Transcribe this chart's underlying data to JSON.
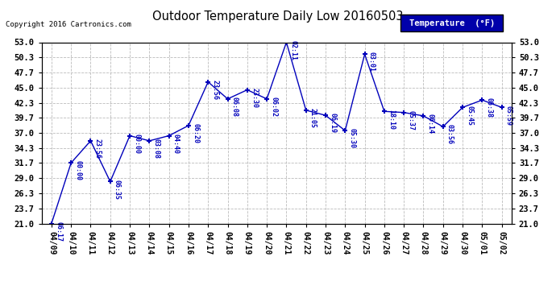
{
  "title": "Outdoor Temperature Daily Low 20160503",
  "copyright": "Copyright 2016 Cartronics.com",
  "legend_label": "Temperature  (°F)",
  "x_labels": [
    "04/09",
    "04/10",
    "04/11",
    "04/12",
    "04/13",
    "04/14",
    "04/15",
    "04/16",
    "04/17",
    "04/18",
    "04/19",
    "04/20",
    "04/21",
    "04/22",
    "04/23",
    "04/24",
    "04/25",
    "04/26",
    "04/27",
    "04/28",
    "04/29",
    "04/30",
    "05/01",
    "05/02"
  ],
  "data_points": [
    {
      "date": "04/09",
      "time": "06:17",
      "temp": 21.0
    },
    {
      "date": "04/10",
      "time": "00:00",
      "temp": 31.7
    },
    {
      "date": "04/11",
      "time": "23:56",
      "temp": 35.6
    },
    {
      "date": "04/12",
      "time": "06:35",
      "temp": 28.4
    },
    {
      "date": "04/13",
      "time": "00:00",
      "temp": 36.5
    },
    {
      "date": "04/14",
      "time": "03:08",
      "temp": 35.6
    },
    {
      "date": "04/15",
      "time": "04:40",
      "temp": 36.5
    },
    {
      "date": "04/16",
      "time": "06:20",
      "temp": 38.3
    },
    {
      "date": "04/17",
      "time": "23:56",
      "temp": 46.0
    },
    {
      "date": "04/18",
      "time": "06:08",
      "temp": 43.0
    },
    {
      "date": "04/19",
      "time": "23:30",
      "temp": 44.6
    },
    {
      "date": "04/20",
      "time": "06:02",
      "temp": 43.0
    },
    {
      "date": "04/21",
      "time": "02:11",
      "temp": 53.0
    },
    {
      "date": "04/22",
      "time": "21:05",
      "temp": 41.0
    },
    {
      "date": "04/23",
      "time": "06:19",
      "temp": 40.1
    },
    {
      "date": "04/24",
      "time": "05:30",
      "temp": 37.4
    },
    {
      "date": "04/25",
      "time": "03:01",
      "temp": 50.9
    },
    {
      "date": "04/26",
      "time": "18:10",
      "temp": 40.8
    },
    {
      "date": "04/27",
      "time": "05:37",
      "temp": 40.6
    },
    {
      "date": "04/28",
      "time": "06:14",
      "temp": 40.0
    },
    {
      "date": "04/29",
      "time": "03:56",
      "temp": 38.1
    },
    {
      "date": "04/30",
      "time": "05:45",
      "temp": 41.5
    },
    {
      "date": "05/01",
      "time": "06:38",
      "temp": 42.8
    },
    {
      "date": "05/02",
      "time": "05:59",
      "temp": 41.5
    }
  ],
  "ylim": [
    21.0,
    53.0
  ],
  "yticks": [
    21.0,
    23.7,
    26.3,
    29.0,
    31.7,
    34.3,
    37.0,
    39.7,
    42.3,
    45.0,
    47.7,
    50.3,
    53.0
  ],
  "line_color": "#0000bb",
  "marker_color": "#0000bb",
  "bg_color": "#ffffff",
  "grid_color": "#bbbbbb",
  "title_color": "#000000",
  "legend_bg": "#0000aa",
  "legend_fg": "#ffffff",
  "copyright_color": "#000000",
  "ann_color": "#0000bb"
}
